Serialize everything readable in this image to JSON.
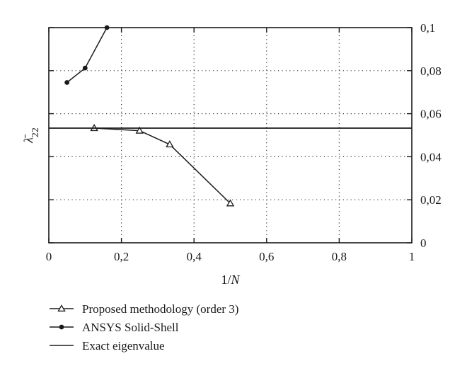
{
  "chart_data": {
    "type": "line",
    "xlabel": "1/N",
    "ylabel": "λ̄22",
    "xlim": [
      0,
      1
    ],
    "ylim": [
      0,
      0.1
    ],
    "x_ticks": [
      0,
      0.2,
      0.4,
      0.6,
      0.8,
      1
    ],
    "x_tick_labels": [
      "0",
      "0,2",
      "0,4",
      "0,6",
      "0,8",
      "1"
    ],
    "y_ticks": [
      0,
      0.02,
      0.04,
      0.06,
      0.08,
      0.1
    ],
    "y_tick_labels": [
      "0",
      "0,02",
      "0,04",
      "0,06",
      "0,08",
      "0,1"
    ],
    "y_axis_side": "right",
    "grid": "dotted",
    "legend_position": "below",
    "series": [
      {
        "name": "Proposed methodology (order 3)",
        "marker": "open-triangle",
        "color": "#1a1a1a",
        "x": [
          0.125,
          0.25,
          0.333,
          0.5
        ],
        "y": [
          0.0533,
          0.0521,
          0.0457,
          0.0183
        ]
      },
      {
        "name": "ANSYS Solid-Shell",
        "marker": "filled-circle",
        "color": "#1a1a1a",
        "x": [
          0.05,
          0.1,
          0.16
        ],
        "y": [
          0.0745,
          0.0812,
          0.1
        ]
      },
      {
        "name": "Exact eigenvalue",
        "marker": "none",
        "color": "#1a1a1a",
        "type": "hline",
        "y": 0.0533
      }
    ]
  }
}
